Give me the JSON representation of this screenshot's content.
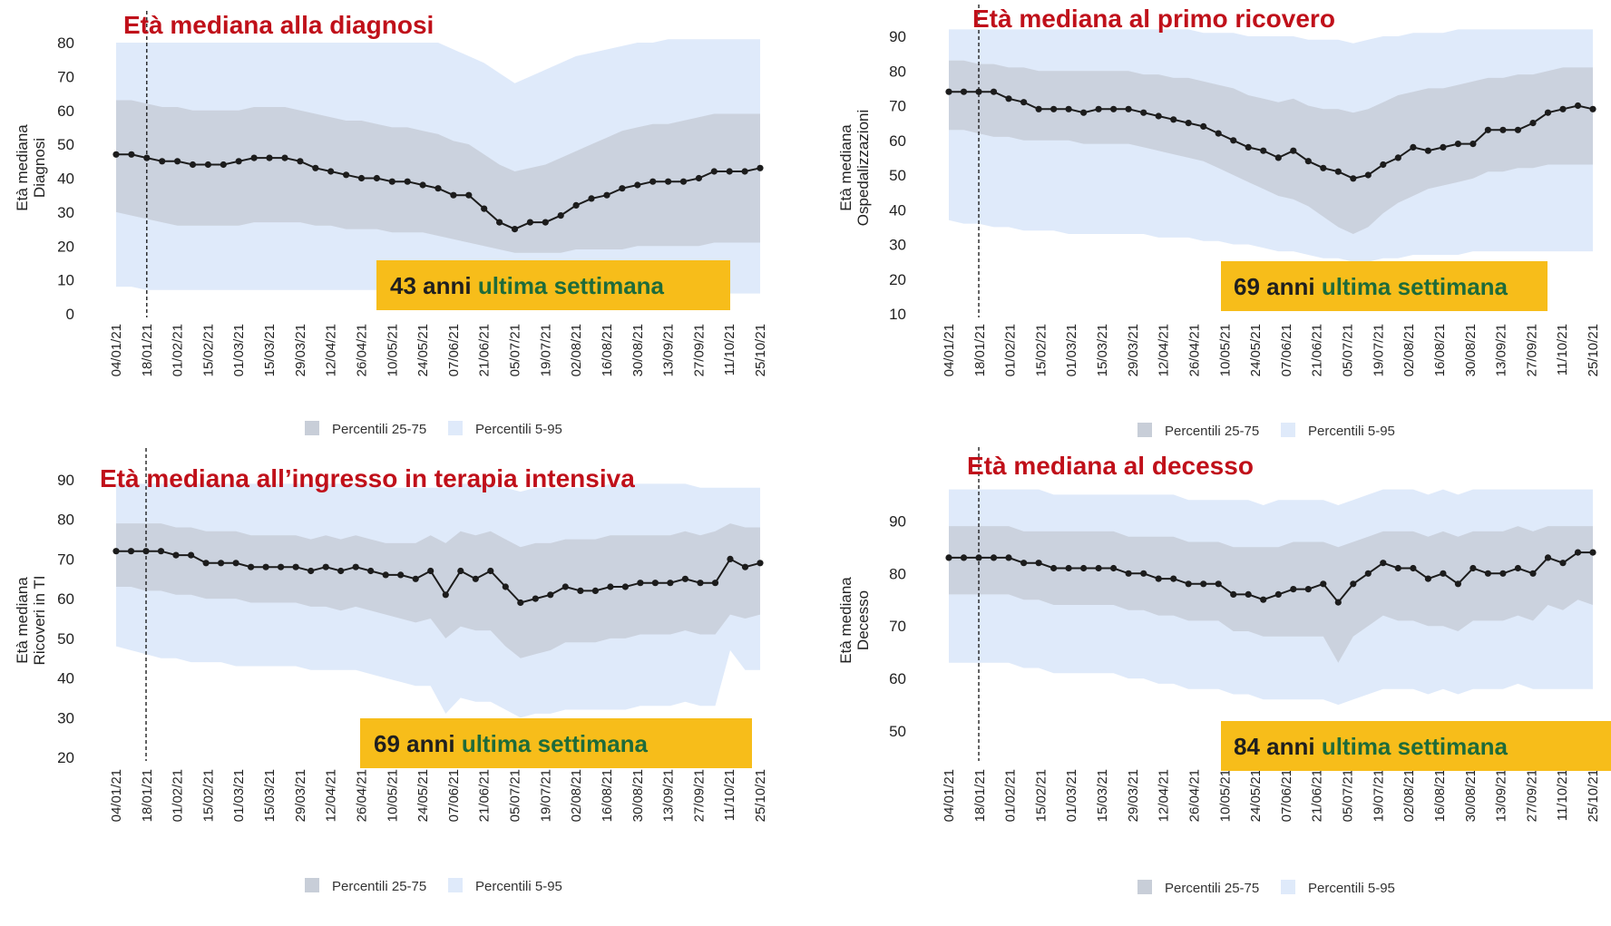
{
  "colors": {
    "band_5_95": "#dfeafa",
    "band_25_75": "#c8ced8",
    "median_line": "#1c1c1c",
    "title": "#c0101a",
    "callout_bg": "#f7bd1a",
    "callout_number": "#1f1f1f",
    "callout_text": "#1e6b3a"
  },
  "chart_data": [
    {
      "id": "diagnosi",
      "type": "line",
      "title": "Età mediana alla diagnosi",
      "ylabel": [
        "Età mediana",
        "Diagnosi"
      ],
      "ylim": [
        0,
        80
      ],
      "yticks": [
        0,
        10,
        20,
        30,
        40,
        50,
        60,
        70,
        80
      ],
      "xticks": [
        "04/01/21",
        "18/01/21",
        "01/02/21",
        "15/02/21",
        "01/03/21",
        "15/03/21",
        "29/03/21",
        "12/04/21",
        "26/04/21",
        "10/05/21",
        "24/05/21",
        "07/06/21",
        "21/06/21",
        "05/07/21",
        "19/07/21",
        "02/08/21",
        "16/08/21",
        "30/08/21",
        "13/09/21",
        "27/09/21",
        "11/10/21",
        "25/10/21"
      ],
      "vline_week": 1,
      "series": [
        {
          "values": [
            47,
            47,
            46,
            45,
            45,
            44,
            44,
            44,
            45,
            46,
            46,
            46,
            45,
            43,
            42,
            41,
            40,
            40,
            39,
            39,
            38,
            37,
            35,
            35,
            31,
            27,
            25,
            27,
            27,
            29,
            32,
            34,
            35,
            37,
            38,
            39,
            39,
            39,
            40,
            42,
            42,
            42,
            43
          ]
        }
      ],
      "band_25_75": {
        "lower": [
          30,
          29,
          28,
          27,
          26,
          26,
          26,
          26,
          26,
          27,
          27,
          27,
          27,
          26,
          26,
          25,
          25,
          25,
          24,
          24,
          24,
          23,
          22,
          21,
          20,
          19,
          18,
          18,
          18,
          18,
          19,
          19,
          19,
          19,
          20,
          20,
          20,
          20,
          20,
          21,
          21,
          21,
          21
        ],
        "upper": [
          63,
          63,
          62,
          61,
          61,
          60,
          60,
          60,
          60,
          61,
          61,
          61,
          60,
          59,
          58,
          57,
          57,
          56,
          55,
          55,
          54,
          53,
          51,
          50,
          47,
          44,
          42,
          43,
          44,
          46,
          48,
          50,
          52,
          54,
          55,
          56,
          56,
          57,
          58,
          59,
          59,
          59,
          59
        ]
      },
      "band_5_95": {
        "lower": [
          8,
          8,
          7,
          7,
          7,
          7,
          7,
          7,
          7,
          7,
          7,
          7,
          7,
          7,
          7,
          7,
          7,
          7,
          7,
          7,
          7,
          7,
          7,
          7,
          6,
          6,
          6,
          6,
          6,
          6,
          6,
          6,
          6,
          6,
          6,
          6,
          6,
          6,
          6,
          6,
          6,
          6,
          6
        ],
        "upper": [
          80,
          80,
          80,
          80,
          80,
          80,
          80,
          80,
          80,
          80,
          80,
          80,
          80,
          80,
          80,
          80,
          80,
          80,
          80,
          80,
          80,
          80,
          78,
          76,
          74,
          71,
          68,
          70,
          72,
          74,
          76,
          77,
          78,
          79,
          80,
          80,
          81,
          81,
          81,
          81,
          81,
          81,
          81
        ]
      },
      "callout": {
        "number": "43 anni",
        "text": "ultima settimana"
      },
      "legend": [
        "Percentili 25-75",
        "Percentili 5-95"
      ]
    },
    {
      "id": "ricovero",
      "type": "line",
      "title": "Età mediana al primo ricovero",
      "ylabel": [
        "Età mediana",
        "Ospedalizzazioni"
      ],
      "ylim": [
        10,
        90
      ],
      "yticks": [
        10,
        20,
        30,
        40,
        50,
        60,
        70,
        80,
        90
      ],
      "xticks": [
        "04/01/21",
        "18/01/21",
        "01/02/21",
        "15/02/21",
        "01/03/21",
        "15/03/21",
        "29/03/21",
        "12/04/21",
        "26/04/21",
        "10/05/21",
        "24/05/21",
        "07/06/21",
        "21/06/21",
        "05/07/21",
        "19/07/21",
        "02/08/21",
        "16/08/21",
        "30/08/21",
        "13/09/21",
        "27/09/21",
        "11/10/21",
        "25/10/21"
      ],
      "vline_week": 1,
      "series": [
        {
          "values": [
            74,
            74,
            74,
            74,
            72,
            71,
            69,
            69,
            69,
            68,
            69,
            69,
            69,
            68,
            67,
            66,
            65,
            64,
            62,
            60,
            58,
            57,
            55,
            57,
            54,
            52,
            51,
            49,
            50,
            53,
            55,
            58,
            57,
            58,
            59,
            59,
            63,
            63,
            63,
            65,
            68,
            69,
            70,
            69
          ]
        }
      ],
      "band_25_75": {
        "lower": [
          63,
          63,
          62,
          61,
          61,
          60,
          60,
          60,
          60,
          59,
          59,
          59,
          59,
          58,
          57,
          56,
          55,
          54,
          52,
          50,
          48,
          46,
          44,
          43,
          41,
          38,
          35,
          33,
          35,
          39,
          42,
          44,
          46,
          47,
          48,
          49,
          51,
          51,
          52,
          52,
          53,
          53,
          53,
          53
        ],
        "upper": [
          83,
          83,
          82,
          82,
          81,
          81,
          80,
          80,
          80,
          80,
          80,
          80,
          80,
          79,
          79,
          78,
          78,
          77,
          76,
          75,
          73,
          72,
          71,
          72,
          70,
          69,
          69,
          68,
          69,
          71,
          73,
          74,
          75,
          75,
          76,
          77,
          78,
          78,
          79,
          79,
          80,
          81,
          81,
          81
        ]
      },
      "band_5_95": {
        "lower": [
          37,
          36,
          36,
          35,
          35,
          34,
          34,
          34,
          33,
          33,
          33,
          33,
          33,
          33,
          32,
          32,
          32,
          31,
          31,
          30,
          30,
          29,
          28,
          28,
          27,
          26,
          26,
          25,
          25,
          26,
          26,
          27,
          27,
          27,
          27,
          28,
          28,
          28,
          28,
          28,
          28,
          28,
          28,
          28
        ],
        "upper": [
          92,
          92,
          92,
          92,
          92,
          92,
          92,
          92,
          92,
          92,
          92,
          92,
          92,
          92,
          92,
          92,
          92,
          91,
          91,
          91,
          90,
          90,
          90,
          90,
          89,
          89,
          89,
          88,
          89,
          90,
          90,
          91,
          91,
          91,
          92,
          92,
          92,
          92,
          92,
          92,
          92,
          92,
          92,
          92
        ]
      },
      "callout": {
        "number": "69 anni",
        "text": "ultima settimana"
      },
      "legend": [
        "Percentili 25-75",
        "Percentili 5-95"
      ]
    },
    {
      "id": "terapia_intensiva",
      "type": "line",
      "title": "Età mediana all’ingresso in terapia intensiva",
      "ylabel": [
        "Età mediana",
        "Ricoveri in TI"
      ],
      "ylim": [
        20,
        90
      ],
      "yticks": [
        20,
        30,
        40,
        50,
        60,
        70,
        80,
        90
      ],
      "xticks": [
        "04/01/21",
        "18/01/21",
        "01/02/21",
        "15/02/21",
        "01/03/21",
        "15/03/21",
        "29/03/21",
        "12/04/21",
        "26/04/21",
        "10/05/21",
        "24/05/21",
        "07/06/21",
        "21/06/21",
        "05/07/21",
        "19/07/21",
        "02/08/21",
        "16/08/21",
        "30/08/21",
        "13/09/21",
        "27/09/21",
        "11/10/21",
        "25/10/21"
      ],
      "vline_week": 1,
      "series": [
        {
          "values": [
            72,
            72,
            72,
            72,
            71,
            71,
            69,
            69,
            69,
            68,
            68,
            68,
            68,
            67,
            68,
            67,
            68,
            67,
            66,
            66,
            65,
            67,
            61,
            67,
            65,
            67,
            63,
            59,
            60,
            61,
            63,
            62,
            62,
            63,
            63,
            64,
            64,
            64,
            65,
            64,
            64,
            70,
            68,
            69
          ]
        }
      ],
      "band_25_75": {
        "lower": [
          63,
          63,
          62,
          62,
          61,
          61,
          60,
          60,
          60,
          59,
          59,
          59,
          59,
          58,
          58,
          57,
          58,
          57,
          56,
          55,
          54,
          55,
          50,
          53,
          52,
          52,
          48,
          45,
          46,
          47,
          49,
          49,
          49,
          50,
          50,
          51,
          51,
          51,
          52,
          51,
          51,
          56,
          55,
          56
        ],
        "upper": [
          79,
          79,
          79,
          79,
          78,
          78,
          77,
          77,
          77,
          76,
          76,
          76,
          76,
          75,
          76,
          75,
          76,
          75,
          74,
          74,
          74,
          76,
          74,
          77,
          76,
          77,
          75,
          73,
          74,
          74,
          75,
          75,
          75,
          76,
          76,
          76,
          76,
          76,
          77,
          76,
          77,
          79,
          78,
          78
        ]
      },
      "band_5_95": {
        "lower": [
          48,
          47,
          46,
          45,
          45,
          44,
          44,
          44,
          43,
          43,
          43,
          43,
          43,
          42,
          42,
          42,
          42,
          41,
          40,
          39,
          38,
          38,
          31,
          35,
          34,
          34,
          32,
          30,
          31,
          31,
          32,
          32,
          32,
          32,
          32,
          33,
          33,
          33,
          34,
          33,
          33,
          47,
          42,
          42
        ],
        "upper": [
          89,
          89,
          89,
          89,
          89,
          89,
          89,
          89,
          89,
          89,
          89,
          89,
          89,
          89,
          89,
          89,
          89,
          89,
          88,
          88,
          88,
          88,
          88,
          89,
          89,
          89,
          88,
          87,
          88,
          88,
          88,
          88,
          88,
          89,
          89,
          89,
          89,
          89,
          89,
          88,
          88,
          88,
          88,
          88
        ]
      },
      "callout": {
        "number": "69 anni",
        "text": "ultima settimana"
      },
      "legend": [
        "Percentili 25-75",
        "Percentili 5-95"
      ]
    },
    {
      "id": "decesso",
      "type": "line",
      "title": "Età mediana al decesso",
      "ylabel": [
        "Età mediana",
        "Decesso"
      ],
      "ylim": [
        45,
        98
      ],
      "yticks": [
        50,
        60,
        70,
        80,
        90
      ],
      "xticks": [
        "04/01/21",
        "18/01/21",
        "01/02/21",
        "15/02/21",
        "01/03/21",
        "15/03/21",
        "29/03/21",
        "12/04/21",
        "26/04/21",
        "10/05/21",
        "24/05/21",
        "07/06/21",
        "21/06/21",
        "05/07/21",
        "19/07/21",
        "02/08/21",
        "16/08/21",
        "30/08/21",
        "13/09/21",
        "27/09/21",
        "11/10/21",
        "25/10/21"
      ],
      "vline_week": 1,
      "series": [
        {
          "values": [
            83,
            83,
            83,
            83,
            83,
            82,
            82,
            81,
            81,
            81,
            81,
            81,
            80,
            80,
            79,
            79,
            78,
            78,
            78,
            76,
            76,
            75,
            76,
            77,
            77,
            78,
            74.5,
            78,
            80,
            82,
            81,
            81,
            79,
            80,
            78,
            81,
            80,
            80,
            81,
            80,
            83,
            82,
            84,
            84
          ]
        }
      ],
      "band_25_75": {
        "lower": [
          76,
          76,
          76,
          76,
          76,
          75,
          75,
          74,
          74,
          74,
          74,
          74,
          73,
          73,
          72,
          72,
          71,
          71,
          71,
          69,
          69,
          68,
          68,
          68,
          68,
          68,
          63,
          68,
          70,
          72,
          71,
          71,
          70,
          70,
          69,
          71,
          71,
          71,
          72,
          71,
          74,
          73,
          75,
          74
        ],
        "upper": [
          89,
          89,
          89,
          89,
          89,
          88,
          88,
          88,
          88,
          88,
          88,
          88,
          87,
          87,
          87,
          87,
          86,
          86,
          86,
          85,
          85,
          85,
          85,
          86,
          86,
          86,
          85,
          86,
          87,
          88,
          88,
          88,
          87,
          88,
          87,
          88,
          88,
          88,
          89,
          88,
          89,
          89,
          89,
          89
        ]
      },
      "band_5_95": {
        "lower": [
          63,
          63,
          63,
          63,
          63,
          62,
          62,
          61,
          61,
          61,
          61,
          61,
          60,
          60,
          59,
          59,
          58,
          58,
          58,
          57,
          57,
          56,
          56,
          56,
          56,
          56,
          55,
          56,
          57,
          58,
          58,
          58,
          57,
          58,
          57,
          58,
          58,
          58,
          59,
          58,
          58,
          58,
          58,
          58
        ],
        "upper": [
          96,
          96,
          96,
          96,
          96,
          96,
          96,
          95,
          95,
          95,
          95,
          95,
          95,
          95,
          95,
          95,
          94,
          94,
          94,
          94,
          94,
          93,
          94,
          94,
          94,
          94,
          93,
          94,
          95,
          96,
          96,
          96,
          95,
          96,
          95,
          96,
          96,
          96,
          96,
          96,
          96,
          96,
          96,
          96
        ]
      },
      "callout": {
        "number": "84 anni",
        "text": "ultima settimana"
      },
      "legend": [
        "Percentili 25-75",
        "Percentili 5-95"
      ]
    }
  ]
}
